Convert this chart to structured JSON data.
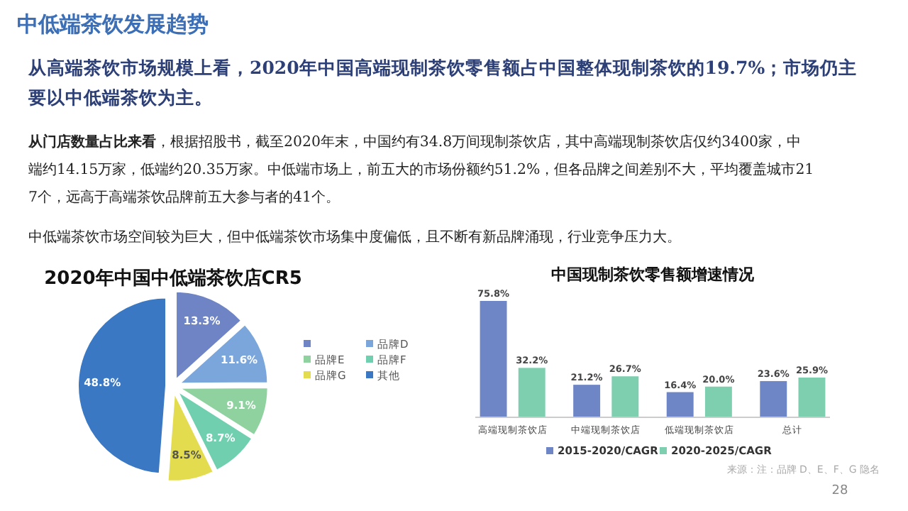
{
  "chart_data": [
    {
      "type": "other",
      "title": "中低端茶饮发展趋势",
      "annotations": [
        "从高端茶饮市场规模上看，2020年中国高端现制茶饮零售额占中国整体现制茶饮的19.7%；市场仍主要以中低端茶饮为主。",
        "从门店数量占比来看，根据招股书，截至2020年末，中国约有34.8万间现制茶饮店，其中高端现制茶饮店仅约3400家，中端约14.15万家，低端约20.35万家。中低端市场上，前五大的市场份额约51.2%，但各品牌之间差别不大，平均覆盖城市217个，远高于高端茶饮品牌前五大参与者的41个。",
        "中低端茶饮市场空间较为巨大，但中低端茶饮市场集中度偏低，且不断有新品牌涌现，行业竞争压力大。",
        "28"
      ]
    },
    {
      "type": "pie",
      "title": "2020年中国中低端茶饮店CR5",
      "categories": [
        null,
        "品牌D",
        "品牌E",
        "品牌F",
        "品牌G",
        "其他"
      ],
      "values": [
        13.3,
        11.6,
        9.1,
        8.7,
        8.5,
        48.8
      ],
      "colors": [
        "#6f84c4",
        "#7aa6dc",
        "#8fd2a0",
        "#6fcfae",
        "#e3dc4e",
        "#3a78c4"
      ],
      "value_labels": [
        "13.3%",
        "11.6%",
        "9.1%",
        "8.7%",
        "8.5%",
        "48.8%"
      ],
      "legend": "right"
    },
    {
      "type": "bar",
      "title": "中国现制茶饮零售额增速情况",
      "categories": [
        "高端现制茶饮店",
        "中端现制茶饮店",
        "低端现制茶饮店",
        "总计"
      ],
      "series": [
        {
          "name": "2015-2020/CAGR",
          "color": "#6f86c6",
          "values": [
            75.8,
            21.2,
            16.4,
            23.6
          ],
          "value_labels": [
            "75.8%",
            "21.2%",
            "16.4%",
            "23.6%"
          ]
        },
        {
          "name": "2020-2025/CAGR",
          "color": "#7ecfb0",
          "values": [
            32.2,
            26.7,
            20.0,
            25.9
          ],
          "value_labels": [
            "32.2%",
            "26.7%",
            "20.0%",
            "25.9%"
          ]
        }
      ],
      "legend": "bottom",
      "annotations": [
        "来源：注：品牌 D、E、F、G 隐名"
      ]
    }
  ]
}
